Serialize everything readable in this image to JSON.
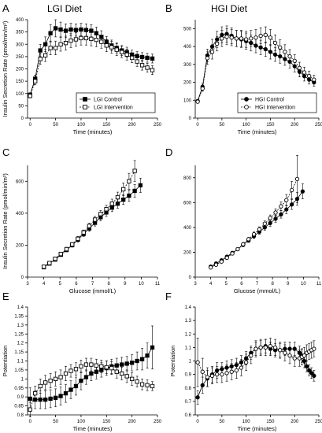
{
  "figure": {
    "panel_letters": [
      "A",
      "B",
      "C",
      "D",
      "E",
      "F"
    ],
    "column_titles": [
      "LGI Diet",
      "HGI Diet"
    ]
  },
  "chart_data": [
    {
      "id": "A",
      "type": "line",
      "xlabel": "Time (minutes)",
      "ylabel": "Insulin Secretion Rate (pmol/min/m²)",
      "xlim": [
        -5,
        250
      ],
      "ylim": [
        0,
        400
      ],
      "xticks": [
        0,
        50,
        100,
        150,
        200,
        250
      ],
      "yticks": [
        0,
        50,
        100,
        150,
        200,
        250,
        300,
        350,
        400
      ],
      "grid": false,
      "legend_position": "bottom-right",
      "x": [
        0,
        10,
        20,
        30,
        40,
        50,
        60,
        70,
        80,
        90,
        100,
        110,
        120,
        130,
        140,
        150,
        160,
        170,
        180,
        190,
        200,
        210,
        220,
        230,
        240
      ],
      "series": [
        {
          "name": "LGI Control",
          "marker": "square-filled",
          "values": [
            95,
            160,
            275,
            300,
            345,
            365,
            360,
            355,
            360,
            358,
            360,
            358,
            355,
            345,
            330,
            310,
            295,
            285,
            275,
            268,
            258,
            252,
            248,
            245,
            242
          ],
          "errors": [
            8,
            15,
            25,
            30,
            35,
            35,
            30,
            28,
            25,
            25,
            25,
            25,
            25,
            25,
            25,
            22,
            22,
            20,
            20,
            20,
            18,
            18,
            18,
            18,
            18
          ]
        },
        {
          "name": "LGI Intervention",
          "marker": "square-open",
          "values": [
            90,
            150,
            240,
            255,
            285,
            285,
            300,
            305,
            315,
            320,
            325,
            325,
            322,
            318,
            310,
            295,
            288,
            278,
            268,
            258,
            245,
            230,
            215,
            205,
            195
          ],
          "errors": [
            8,
            15,
            22,
            25,
            28,
            28,
            28,
            28,
            28,
            28,
            28,
            28,
            28,
            28,
            26,
            25,
            24,
            24,
            22,
            22,
            20,
            20,
            20,
            18,
            18
          ]
        }
      ]
    },
    {
      "id": "B",
      "type": "line",
      "xlabel": "Time (minutes)",
      "ylabel": "",
      "xlim": [
        -5,
        250
      ],
      "ylim": [
        0,
        550
      ],
      "xticks": [
        0,
        50,
        100,
        150,
        200,
        250
      ],
      "yticks": [
        0,
        100,
        200,
        300,
        400,
        500
      ],
      "grid": false,
      "legend_position": "bottom-right",
      "x": [
        0,
        10,
        20,
        30,
        40,
        50,
        60,
        70,
        80,
        90,
        100,
        110,
        120,
        130,
        140,
        150,
        160,
        170,
        180,
        190,
        200,
        210,
        220,
        230,
        240
      ],
      "series": [
        {
          "name": "HGI Control",
          "marker": "circle-filled",
          "values": [
            95,
            175,
            350,
            400,
            440,
            465,
            470,
            460,
            445,
            440,
            430,
            420,
            405,
            395,
            385,
            370,
            355,
            345,
            330,
            315,
            290,
            260,
            235,
            215,
            200
          ],
          "errors": [
            8,
            15,
            35,
            40,
            45,
            45,
            45,
            45,
            45,
            45,
            45,
            45,
            40,
            40,
            40,
            40,
            38,
            38,
            35,
            35,
            32,
            30,
            28,
            25,
            22
          ]
        },
        {
          "name": "HGI Intervention",
          "marker": "circle-open",
          "values": [
            92,
            165,
            335,
            370,
            415,
            445,
            455,
            450,
            445,
            445,
            440,
            445,
            450,
            460,
            465,
            450,
            420,
            395,
            370,
            345,
            320,
            280,
            255,
            235,
            215
          ],
          "errors": [
            8,
            15,
            35,
            40,
            40,
            45,
            45,
            45,
            45,
            45,
            45,
            45,
            45,
            45,
            45,
            45,
            45,
            42,
            40,
            38,
            35,
            32,
            30,
            28,
            25
          ]
        }
      ]
    },
    {
      "id": "C",
      "type": "scatter",
      "xlabel": "Glucose (mmol/L)",
      "ylabel": "Insulin Secretion Rate (pmol/min/m²)",
      "xlim": [
        3,
        11
      ],
      "ylim": [
        0,
        700
      ],
      "xticks": [
        3,
        4,
        5,
        6,
        7,
        8,
        9,
        10,
        11
      ],
      "yticks": [
        0,
        200,
        400,
        600
      ],
      "grid": false,
      "legend_position": "none",
      "series": [
        {
          "name": "LGI Control",
          "marker": "square-filled",
          "x": [
            4.0,
            4.35,
            4.7,
            5.05,
            5.4,
            5.75,
            6.1,
            6.45,
            6.8,
            7.15,
            7.5,
            7.85,
            8.2,
            8.55,
            8.9,
            9.25,
            9.6,
            9.95
          ],
          "y": [
            62,
            85,
            110,
            140,
            170,
            200,
            235,
            270,
            305,
            340,
            375,
            405,
            435,
            460,
            485,
            510,
            540,
            575
          ],
          "errors": [
            8,
            8,
            10,
            10,
            12,
            12,
            15,
            15,
            18,
            20,
            22,
            25,
            25,
            28,
            30,
            35,
            40,
            45
          ]
        },
        {
          "name": "LGI Intervention",
          "marker": "square-open",
          "x": [
            4.0,
            4.35,
            4.7,
            5.05,
            5.4,
            5.75,
            6.1,
            6.45,
            6.8,
            7.15,
            7.5,
            7.85,
            8.2,
            8.55,
            8.9,
            9.25,
            9.6
          ],
          "y": [
            65,
            88,
            115,
            145,
            175,
            205,
            240,
            280,
            320,
            360,
            395,
            425,
            460,
            500,
            550,
            600,
            665
          ],
          "errors": [
            8,
            8,
            10,
            10,
            12,
            12,
            15,
            15,
            18,
            20,
            22,
            25,
            28,
            32,
            40,
            50,
            65
          ]
        }
      ]
    },
    {
      "id": "D",
      "type": "scatter",
      "xlabel": "Glucose (mmol/L)",
      "ylabel": "",
      "xlim": [
        3,
        11
      ],
      "ylim": [
        0,
        900
      ],
      "xticks": [
        3,
        4,
        5,
        6,
        7,
        8,
        9,
        10,
        11
      ],
      "yticks": [
        0,
        200,
        400,
        600,
        800
      ],
      "grid": false,
      "legend_position": "none",
      "series": [
        {
          "name": "HGI Control",
          "marker": "circle-filled",
          "x": [
            4.0,
            4.35,
            4.7,
            5.05,
            5.4,
            5.75,
            6.1,
            6.45,
            6.8,
            7.15,
            7.5,
            7.85,
            8.2,
            8.55,
            8.9,
            9.25,
            9.6,
            9.95
          ],
          "y": [
            85,
            110,
            135,
            165,
            195,
            225,
            260,
            295,
            330,
            365,
            400,
            435,
            470,
            505,
            545,
            585,
            630,
            690
          ],
          "errors": [
            8,
            8,
            10,
            10,
            12,
            12,
            15,
            15,
            18,
            20,
            22,
            25,
            28,
            30,
            35,
            40,
            50,
            60
          ]
        },
        {
          "name": "HGI Intervention",
          "marker": "circle-open",
          "x": [
            4.0,
            4.35,
            4.7,
            5.05,
            5.4,
            5.75,
            6.1,
            6.45,
            6.8,
            7.15,
            7.5,
            7.85,
            8.2,
            8.55,
            8.9,
            9.25,
            9.6
          ],
          "y": [
            78,
            100,
            125,
            155,
            190,
            225,
            265,
            305,
            345,
            385,
            430,
            475,
            520,
            570,
            620,
            700,
            790
          ],
          "errors": [
            8,
            8,
            10,
            10,
            12,
            12,
            15,
            15,
            18,
            20,
            22,
            25,
            30,
            35,
            45,
            70,
            190
          ]
        }
      ]
    },
    {
      "id": "E",
      "type": "line",
      "xlabel": "Time (minutes)",
      "ylabel": "Potentiation",
      "xlim": [
        -5,
        250
      ],
      "ylim": [
        0.8,
        1.4
      ],
      "xticks": [
        0,
        50,
        100,
        150,
        200,
        250
      ],
      "yticks": [
        0.8,
        0.85,
        0.9,
        0.95,
        1,
        1.05,
        1.1,
        1.15,
        1.2,
        1.25,
        1.3,
        1.35,
        1.4
      ],
      "grid": false,
      "legend_position": "none",
      "x": [
        0,
        10,
        20,
        30,
        40,
        50,
        60,
        70,
        80,
        90,
        100,
        110,
        120,
        130,
        140,
        150,
        160,
        170,
        180,
        190,
        200,
        210,
        220,
        230,
        240
      ],
      "series": [
        {
          "name": "LGI Control",
          "marker": "square-filled",
          "values": [
            0.89,
            0.885,
            0.885,
            0.885,
            0.89,
            0.895,
            0.905,
            0.92,
            0.94,
            0.96,
            0.99,
            1.01,
            1.03,
            1.04,
            1.05,
            1.06,
            1.07,
            1.075,
            1.08,
            1.085,
            1.09,
            1.1,
            1.11,
            1.13,
            1.175
          ],
          "errors": [
            0.06,
            0.05,
            0.05,
            0.05,
            0.05,
            0.05,
            0.05,
            0.05,
            0.05,
            0.05,
            0.05,
            0.04,
            0.04,
            0.04,
            0.04,
            0.04,
            0.04,
            0.04,
            0.04,
            0.04,
            0.045,
            0.05,
            0.06,
            0.07,
            0.12
          ]
        },
        {
          "name": "LGI Intervention",
          "marker": "square-open",
          "values": [
            0.83,
            0.92,
            0.96,
            0.98,
            0.99,
            1.0,
            1.01,
            1.03,
            1.045,
            1.055,
            1.07,
            1.08,
            1.08,
            1.075,
            1.07,
            1.065,
            1.06,
            1.04,
            1.03,
            1.015,
            1.0,
            0.985,
            0.97,
            0.965,
            0.96
          ],
          "errors": [
            0.04,
            0.04,
            0.04,
            0.04,
            0.04,
            0.04,
            0.04,
            0.04,
            0.035,
            0.035,
            0.035,
            0.035,
            0.035,
            0.035,
            0.035,
            0.035,
            0.035,
            0.035,
            0.035,
            0.035,
            0.035,
            0.03,
            0.03,
            0.03,
            0.025
          ]
        }
      ]
    },
    {
      "id": "F",
      "type": "line",
      "xlabel": "Time (minutes)",
      "ylabel": "Potentiation",
      "xlim": [
        -5,
        250
      ],
      "ylim": [
        0.6,
        1.4
      ],
      "xticks": [
        0,
        50,
        100,
        150,
        200,
        250
      ],
      "yticks": [
        0.6,
        0.7,
        0.8,
        0.9,
        1,
        1.1,
        1.2,
        1.3,
        1.4
      ],
      "grid": false,
      "legend_position": "none",
      "x": [
        0,
        10,
        20,
        30,
        40,
        50,
        60,
        70,
        80,
        90,
        100,
        110,
        120,
        130,
        140,
        150,
        160,
        170,
        180,
        190,
        200,
        210,
        215,
        220,
        225,
        230,
        235,
        240
      ],
      "series": [
        {
          "name": "HGI Control",
          "marker": "circle-filled",
          "values": [
            0.73,
            0.82,
            0.87,
            0.9,
            0.93,
            0.94,
            0.95,
            0.96,
            0.97,
            0.99,
            1.02,
            1.06,
            1.09,
            1.1,
            1.11,
            1.09,
            1.08,
            1.08,
            1.09,
            1.09,
            1.09,
            1.06,
            1.04,
            1.0,
            0.96,
            0.93,
            0.91,
            0.89
          ],
          "errors": [
            0.05,
            0.06,
            0.06,
            0.06,
            0.06,
            0.05,
            0.05,
            0.05,
            0.05,
            0.05,
            0.05,
            0.05,
            0.05,
            0.05,
            0.05,
            0.05,
            0.05,
            0.05,
            0.05,
            0.05,
            0.05,
            0.05,
            0.05,
            0.05,
            0.04,
            0.04,
            0.04,
            0.04
          ]
        },
        {
          "name": "HGI Intervention",
          "marker": "circle-open",
          "values": [
            0.99,
            0.92,
            0.88,
            0.89,
            0.9,
            0.9,
            0.91,
            0.92,
            0.93,
            0.95,
            0.99,
            1.04,
            1.09,
            1.1,
            1.1,
            1.11,
            1.1,
            1.08,
            1.06,
            1.04,
            1.02,
            1.02,
            1.03,
            1.04,
            1.06,
            1.07,
            1.08,
            1.09
          ],
          "errors": [
            0.18,
            0.1,
            0.07,
            0.06,
            0.06,
            0.06,
            0.06,
            0.06,
            0.06,
            0.06,
            0.06,
            0.06,
            0.06,
            0.06,
            0.06,
            0.06,
            0.06,
            0.06,
            0.06,
            0.06,
            0.06,
            0.06,
            0.06,
            0.06,
            0.06,
            0.06,
            0.06,
            0.06
          ]
        }
      ]
    }
  ]
}
